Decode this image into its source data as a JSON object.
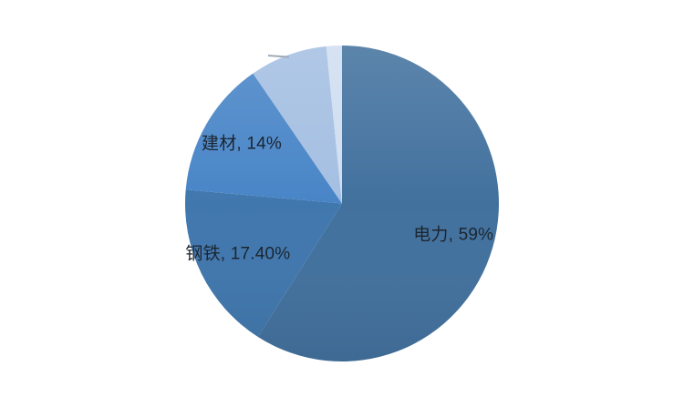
{
  "page": {
    "background_color": "#ffffff"
  },
  "chart_data": {
    "type": "pie",
    "title": "",
    "unit": "%",
    "start_angle_deg": 0,
    "direction": "clockwise",
    "legend": "none",
    "grid": false,
    "label_color": "#1C2530",
    "slices": [
      {
        "label": "电力",
        "value": 59,
        "data_label": "电力, 59%",
        "label_visible": true,
        "estimated": false,
        "color": "#42719E"
      },
      {
        "label": "钢铁",
        "value": 17.4,
        "data_label": "钢铁, 17.40%",
        "label_visible": true,
        "estimated": false,
        "color": "#4077AD"
      },
      {
        "label": "建材",
        "value": 14,
        "data_label": "建材, 14%",
        "label_visible": true,
        "estimated": false,
        "color": "#4885C7"
      },
      {
        "label": "",
        "value": 8,
        "data_label": "",
        "label_visible": false,
        "estimated": true,
        "color": "#A4BFE2"
      },
      {
        "label": "",
        "value": 1.6,
        "data_label": "",
        "label_visible": false,
        "estimated": true,
        "color": "#CFDEF1"
      }
    ]
  }
}
